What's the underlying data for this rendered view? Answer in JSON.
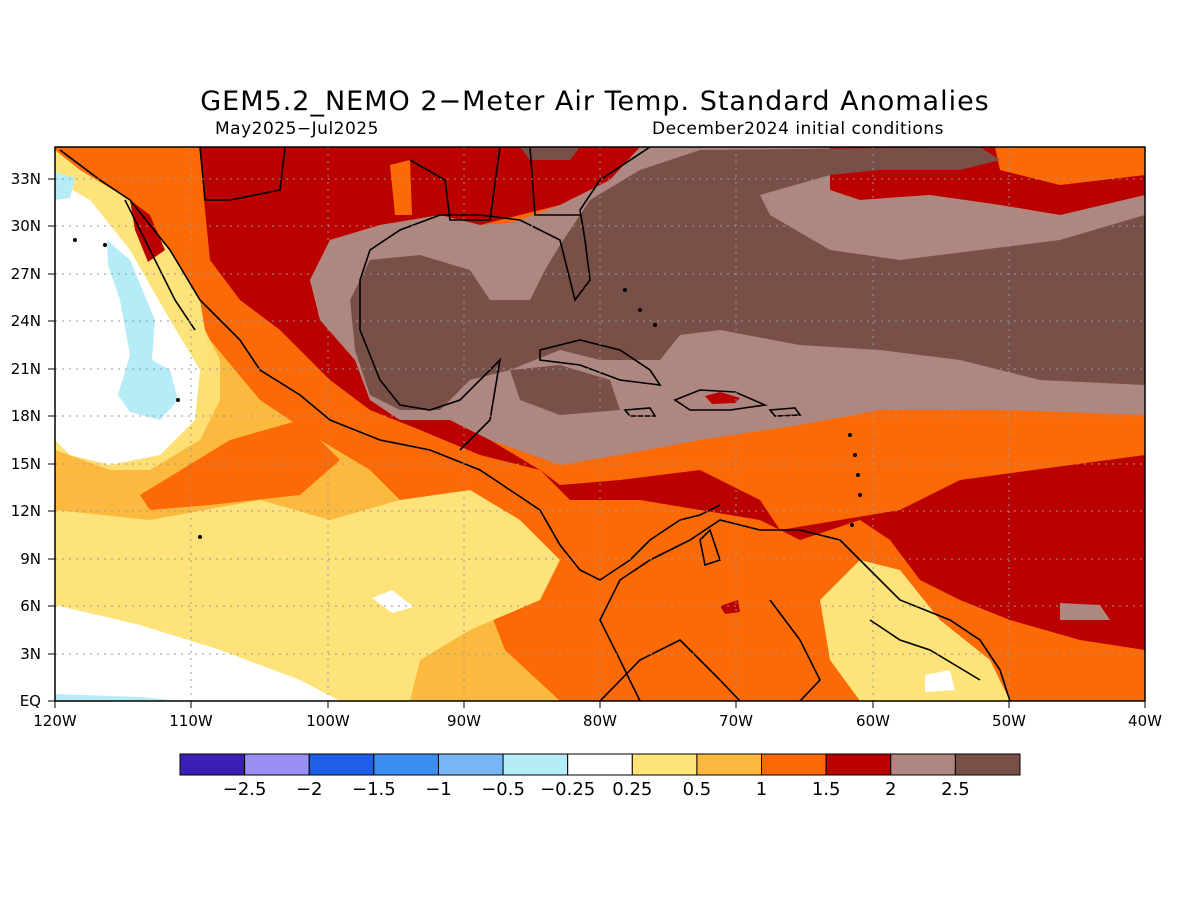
{
  "title": "GEM5.2_NEMO 2−Meter Air Temp. Standard Anomalies",
  "subtitle_left": "May2025−Jul2025",
  "subtitle_right": "December2024 initial conditions",
  "map": {
    "lon_range": [
      -120,
      -40
    ],
    "lat_range": [
      0,
      35
    ],
    "lat_labels": [
      "EQ",
      "3N",
      "6N",
      "9N",
      "12N",
      "15N",
      "18N",
      "21N",
      "24N",
      "27N",
      "30N",
      "33N"
    ],
    "lon_labels": [
      "120W",
      "110W",
      "100W",
      "90W",
      "80W",
      "70W",
      "60W",
      "50W",
      "40W"
    ],
    "grid": "dotted",
    "region": "Gulf of Mexico, Caribbean Sea, Central America, eastern tropical Pacific and western tropical Atlantic"
  },
  "colorbar": {
    "colors": [
      "#3b1fb5",
      "#9a8ff2",
      "#1f5fe8",
      "#3d8ef3",
      "#78b5f5",
      "#b4ecf8",
      "#ffffff",
      "#fde37a",
      "#fcb93f",
      "#fb6a06",
      "#bb0000",
      "#ad8780",
      "#785048"
    ],
    "labels": [
      "−2.5",
      "−2",
      "−1.5",
      "−1",
      "−0.5",
      "−0.25",
      "0.25",
      "0.5",
      "1",
      "1.5",
      "2",
      "2.5"
    ]
  }
}
